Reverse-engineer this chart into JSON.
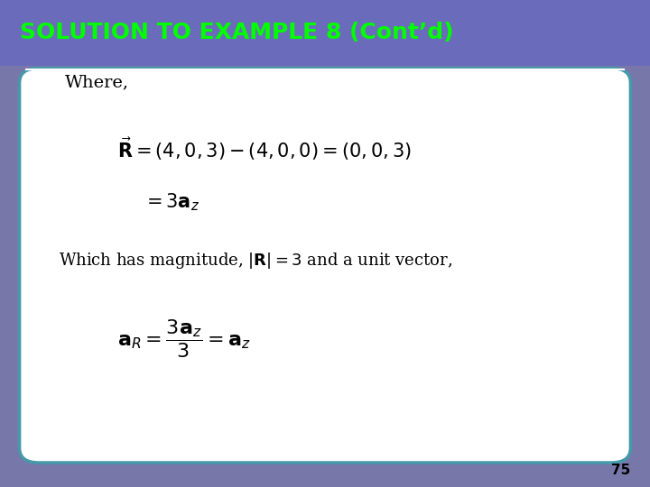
{
  "title": "SOLUTION TO EXAMPLE 8 (Cont’d)",
  "title_bg_color": "#6B6BBB",
  "title_text_color": "#00FF00",
  "slide_bg_color": "#7777AA",
  "content_bg_color": "#FFFFFF",
  "border_color": "#4499AA",
  "page_number": "75",
  "line1_text": "Where,",
  "line2_text": "Which has magnitude, $|\\mathbf{R}| = 3$ and a unit vector,"
}
